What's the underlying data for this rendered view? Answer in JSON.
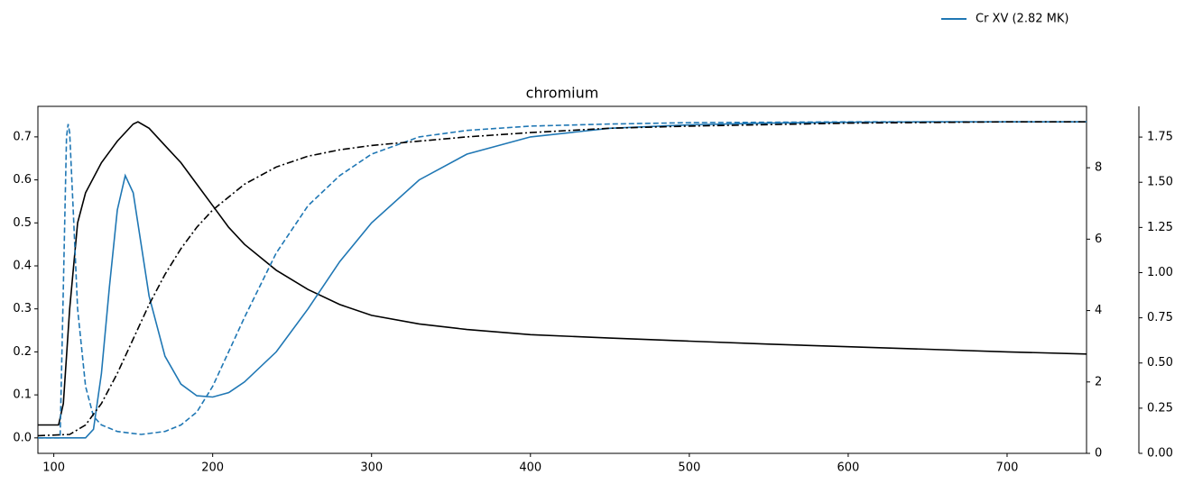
{
  "chart_data": {
    "type": "line",
    "title": "chromium",
    "xlim": [
      90,
      750
    ],
    "xticks": [
      100,
      200,
      300,
      400,
      500,
      600,
      700
    ],
    "ylim": [
      -0.036,
      0.771
    ],
    "yticks": [
      {
        "value": 0.0,
        "label": "0.0"
      },
      0.1,
      0.2,
      0.3,
      0.4,
      0.5,
      0.6,
      0.7
    ],
    "y2lim": [
      0,
      9.72
    ],
    "y2ticks": [
      0,
      2,
      4,
      6,
      8
    ],
    "y3lim": [
      0,
      1.92
    ],
    "y3ticks": [
      {
        "value": 0,
        "label": "0.00"
      },
      0.25,
      {
        "value": 0.5,
        "label": "0.50"
      },
      0.75,
      {
        "value": 1,
        "label": "1.00"
      },
      1.25,
      {
        "value": 1.5,
        "label": "1.50"
      },
      1.75
    ],
    "legend": "upper right",
    "series": [
      {
        "color": "#000000",
        "dash": "solid",
        "x": [
          90,
          103,
          106,
          110,
          115,
          120,
          130,
          140,
          150,
          153,
          160,
          170,
          180,
          190,
          200,
          210,
          220,
          240,
          260,
          280,
          300,
          330,
          360,
          400,
          450,
          500,
          550,
          600,
          650,
          700,
          750
        ],
        "values": [
          0.03,
          0.03,
          0.08,
          0.3,
          0.5,
          0.57,
          0.64,
          0.69,
          0.73,
          0.735,
          0.72,
          0.68,
          0.64,
          0.59,
          0.54,
          0.49,
          0.45,
          0.39,
          0.345,
          0.31,
          0.285,
          0.265,
          0.252,
          0.24,
          0.232,
          0.225,
          0.218,
          0.212,
          0.206,
          0.2,
          0.195
        ]
      },
      {
        "name": "Cr XV (2.82 MK)",
        "color": "#1f77b4",
        "dash": "solid",
        "x": [
          90,
          120,
          125,
          130,
          135,
          140,
          145,
          150,
          155,
          160,
          170,
          180,
          190,
          200,
          210,
          220,
          240,
          260,
          280,
          300,
          330,
          360,
          400,
          450,
          500,
          550,
          600,
          650,
          700,
          750
        ],
        "values": [
          0,
          0,
          0.02,
          0.15,
          0.35,
          0.53,
          0.61,
          0.57,
          0.45,
          0.33,
          0.19,
          0.125,
          0.098,
          0.095,
          0.105,
          0.13,
          0.2,
          0.3,
          0.41,
          0.5,
          0.6,
          0.66,
          0.7,
          0.72,
          0.728,
          0.732,
          0.734,
          0.735,
          0.735,
          0.735
        ]
      },
      {
        "color": "#1f77b4",
        "dash": "dashed",
        "x": [
          90,
          104,
          106,
          108,
          109,
          110,
          112,
          115,
          120,
          125,
          130,
          140,
          155,
          170,
          180,
          190,
          200,
          210,
          220,
          240,
          260,
          280,
          300,
          330,
          360,
          400,
          450,
          500,
          600,
          750
        ],
        "values": [
          0,
          0,
          0.35,
          0.7,
          0.73,
          0.71,
          0.55,
          0.3,
          0.12,
          0.05,
          0.03,
          0.015,
          0.008,
          0.015,
          0.03,
          0.06,
          0.12,
          0.2,
          0.28,
          0.43,
          0.54,
          0.61,
          0.66,
          0.7,
          0.715,
          0.725,
          0.73,
          0.733,
          0.735,
          0.735
        ]
      },
      {
        "color": "#000000",
        "dash": "dashdot",
        "x": [
          90,
          110,
          120,
          130,
          140,
          150,
          160,
          170,
          180,
          190,
          200,
          220,
          240,
          260,
          280,
          300,
          330,
          360,
          400,
          450,
          500,
          600,
          700,
          750
        ],
        "values": [
          0.005,
          0.008,
          0.03,
          0.08,
          0.15,
          0.23,
          0.31,
          0.38,
          0.44,
          0.49,
          0.53,
          0.59,
          0.63,
          0.655,
          0.67,
          0.68,
          0.69,
          0.7,
          0.71,
          0.72,
          0.725,
          0.732,
          0.735,
          0.735
        ]
      }
    ]
  }
}
